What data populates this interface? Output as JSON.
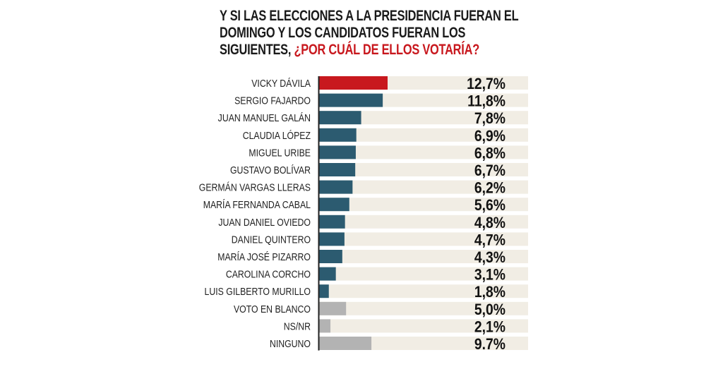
{
  "chart_data": {
    "type": "bar",
    "orientation": "horizontal",
    "title": "Y SI LAS ELECCIONES A LA PRESIDENCIA FUERAN EL DOMINGO Y LOS CANDIDATOS FUERAN LOS SIGUIENTES,",
    "title_highlight": "¿POR CUÁL DE ELLOS VOTARÍA?",
    "xlim": [
      0,
      39
    ],
    "grid": false,
    "categories": [
      "VICKY DÁVILA",
      "SERGIO FAJARDO",
      "JUAN MANUEL GALÁN",
      "CLAUDIA LÓPEZ",
      "MIGUEL URIBE",
      "GUSTAVO BOLÍVAR",
      "GERMÁN VARGAS LLERAS",
      "MARÍA FERNANDA CABAL",
      "JUAN DANIEL OVIEDO",
      "DANIEL QUINTERO",
      "MARÍA JOSÉ PIZARRO",
      "CAROLINA CORCHO",
      "LUIS GILBERTO MURILLO",
      "VOTO EN BLANCO",
      "NS/NR",
      "NINGUNO"
    ],
    "values": [
      12.7,
      11.8,
      7.8,
      6.9,
      6.8,
      6.7,
      6.2,
      5.6,
      4.8,
      4.7,
      4.3,
      3.1,
      1.8,
      5.0,
      2.1,
      9.7
    ],
    "value_labels": [
      "12,7%",
      "11,8%",
      "7,8%",
      "6,9%",
      "6,8%",
      "6,7%",
      "6,2%",
      "5,6%",
      "4,8%",
      "4,7%",
      "4,3%",
      "3,1%",
      "1,8%",
      "5,0%",
      "2,1%",
      "9.7%"
    ],
    "bar_groups": [
      "highlight",
      "candidate",
      "candidate",
      "candidate",
      "candidate",
      "candidate",
      "candidate",
      "candidate",
      "candidate",
      "candidate",
      "candidate",
      "candidate",
      "candidate",
      "other",
      "other",
      "other"
    ],
    "colors": {
      "highlight": "#c8181e",
      "candidate": "#2c5b70",
      "other": "#b3b3b3",
      "track": "#f1ede4",
      "axis": "#222222",
      "highlight_text": "#c8181e",
      "text": "#111111"
    }
  }
}
